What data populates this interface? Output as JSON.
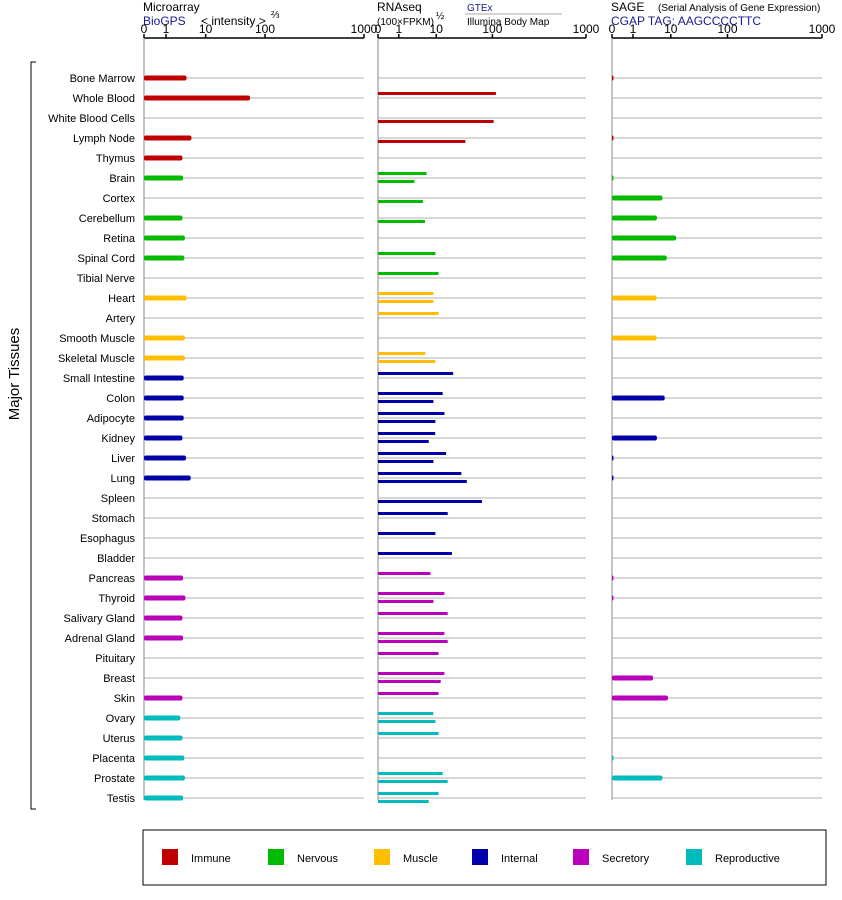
{
  "headers": {
    "microarray": {
      "title": "Microarray",
      "source": "BioGPS",
      "unit": "< intensity >",
      "unit_exp": "⅔"
    },
    "rnaseq": {
      "title": "RNAseq",
      "unit": "(100×FPKM)",
      "unit_exp": "½",
      "source_top": "GTEx",
      "source_bottom": "Illumina Body Map"
    },
    "sage": {
      "title": "SAGE",
      "subtitle": "(Serial Analysis of Gene Expression)",
      "tag": "CGAP TAG: AAGCCCCTTC"
    }
  },
  "side_label": "Major Tissues",
  "legend": [
    {
      "label": "Immune",
      "color": "#c00000"
    },
    {
      "label": "Nervous",
      "color": "#00bb00"
    },
    {
      "label": "Muscle",
      "color": "#ffbf00"
    },
    {
      "label": "Internal",
      "color": "#0000aa"
    },
    {
      "label": "Secretory",
      "color": "#bb00bb"
    },
    {
      "label": "Reproductive",
      "color": "#00bbbb"
    }
  ],
  "chart_data": {
    "type": "bar",
    "orientation": "horizontal",
    "x_ticks": [
      "0",
      "1",
      "10",
      "100",
      "1000"
    ],
    "x_range": [
      0,
      1000
    ],
    "categories": [
      "Bone Marrow",
      "Whole Blood",
      "White Blood Cells",
      "Lymph Node",
      "Thymus",
      "Brain",
      "Cortex",
      "Cerebellum",
      "Retina",
      "Spinal Cord",
      "Tibial Nerve",
      "Heart",
      "Artery",
      "Smooth Muscle",
      "Skeletal Muscle",
      "Small Intestine",
      "Colon",
      "Adipocyte",
      "Kidney",
      "Liver",
      "Lung",
      "Spleen",
      "Stomach",
      "Esophagus",
      "Bladder",
      "Pancreas",
      "Thyroid",
      "Salivary Gland",
      "Adrenal Gland",
      "Pituitary",
      "Breast",
      "Skin",
      "Ovary",
      "Uterus",
      "Placenta",
      "Prostate",
      "Testis"
    ],
    "groups": [
      "Immune",
      "Immune",
      "Immune",
      "Immune",
      "Immune",
      "Nervous",
      "Nervous",
      "Nervous",
      "Nervous",
      "Nervous",
      "Nervous",
      "Muscle",
      "Muscle",
      "Muscle",
      "Muscle",
      "Internal",
      "Internal",
      "Internal",
      "Internal",
      "Internal",
      "Internal",
      "Internal",
      "Internal",
      "Internal",
      "Internal",
      "Secretory",
      "Secretory",
      "Secretory",
      "Secretory",
      "Secretory",
      "Secretory",
      "Secretory",
      "Reproductive",
      "Reproductive",
      "Reproductive",
      "Reproductive",
      "Reproductive"
    ],
    "series": [
      {
        "name": "Microarray",
        "values": [
          3.3,
          56,
          null,
          4.4,
          2.6,
          2.7,
          null,
          2.6,
          3.0,
          2.9,
          null,
          3.3,
          null,
          3.0,
          3.0,
          2.8,
          2.8,
          2.8,
          2.6,
          3.2,
          4.2,
          null,
          null,
          null,
          null,
          2.7,
          3.1,
          2.6,
          2.7,
          null,
          null,
          2.6,
          2.3,
          2.6,
          2.9,
          3.0,
          2.7
        ]
      },
      {
        "name": "GTEx",
        "values": [
          null,
          109,
          null,
          null,
          null,
          5.5,
          null,
          null,
          null,
          9.5,
          11,
          8.4,
          11,
          null,
          5.1,
          20,
          13,
          14,
          9.4,
          15,
          28,
          null,
          16,
          9.5,
          19,
          7.0,
          14,
          16,
          14,
          11,
          14,
          11,
          8.3,
          11,
          null,
          13,
          11
        ]
      },
      {
        "name": "Illumina Body Map",
        "values": [
          null,
          null,
          103,
          33,
          null,
          2.6,
          4.4,
          5.0,
          null,
          null,
          null,
          8.4,
          null,
          null,
          9.5,
          null,
          8.4,
          9.5,
          6.3,
          8.4,
          35,
          65,
          null,
          null,
          null,
          null,
          8.4,
          null,
          16,
          null,
          12,
          null,
          9.5,
          null,
          null,
          16,
          6.3
        ]
      },
      {
        "name": "SAGE",
        "values": [
          0.05,
          null,
          null,
          0.05,
          null,
          0.05,
          6.0,
          4.3,
          12.4,
          7.8,
          null,
          4.2,
          null,
          4.2,
          null,
          null,
          6.9,
          null,
          4.3,
          0.05,
          0.05,
          null,
          null,
          null,
          null,
          0.05,
          0.05,
          null,
          null,
          null,
          3.4,
          8.4,
          null,
          null,
          0.05,
          6.0,
          null
        ]
      }
    ]
  }
}
